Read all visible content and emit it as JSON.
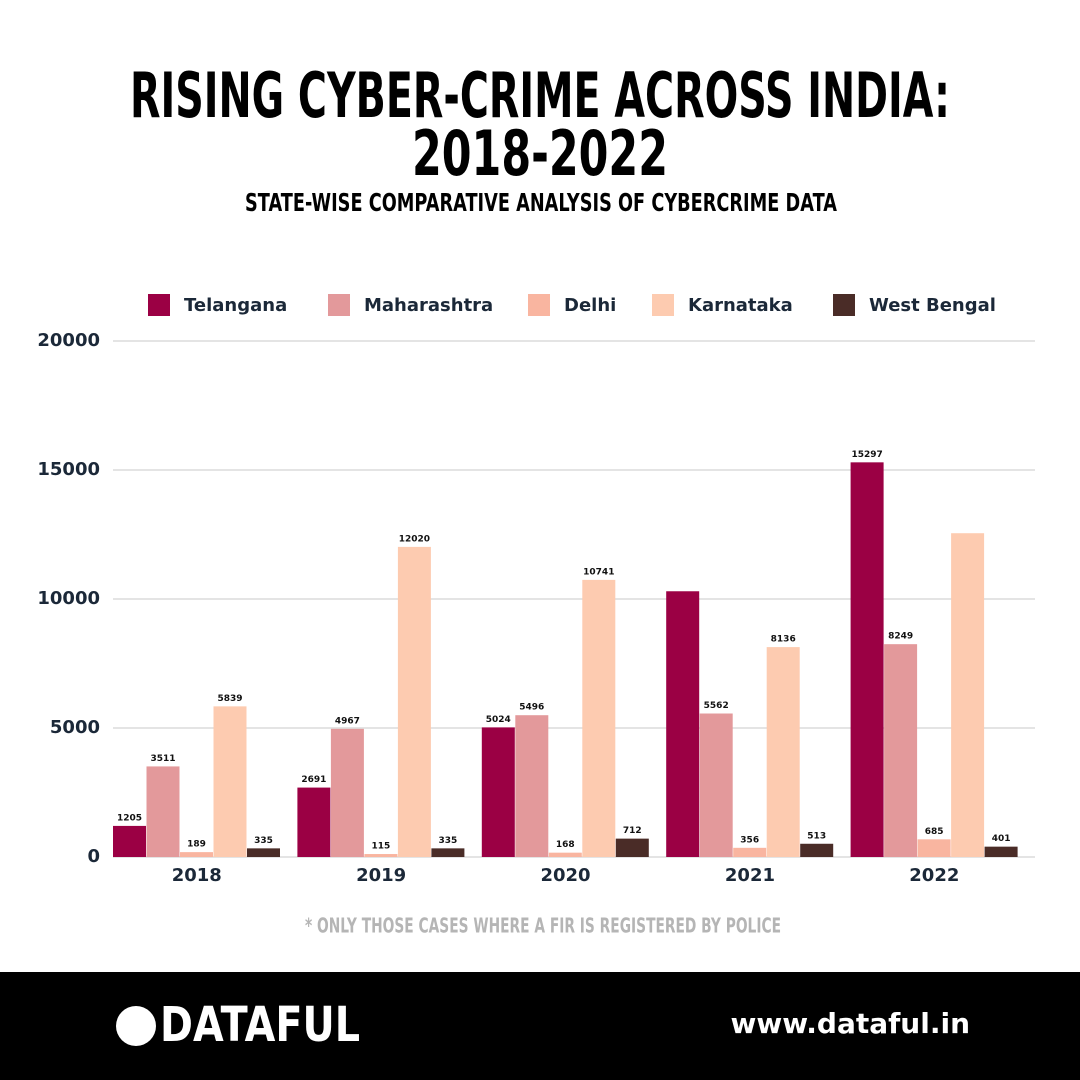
{
  "chart_data": {
    "type": "bar",
    "title": [
      "RISING CYBER-CRIME ACROSS INDIA:",
      "2018-2022"
    ],
    "subtitle": "STATE-WISE COMPARATIVE ANALYSIS OF CYBERCRIME DATA",
    "footnote": "* ONLY THOSE CASES WHERE A FIR IS REGISTERED BY POLICE",
    "categories": [
      "2018",
      "2019",
      "2020",
      "2021",
      "2022"
    ],
    "series": [
      {
        "name": "Telangana",
        "color": "#9b0044",
        "values": [
          1205,
          2691,
          5024,
          10300,
          15297
        ],
        "value_labels": [
          "1205",
          "2691",
          "5024",
          null,
          "15297"
        ]
      },
      {
        "name": "Maharashtra",
        "color": "#e3999b",
        "values": [
          3511,
          4967,
          5496,
          5562,
          8249
        ]
      },
      {
        "name": "Delhi",
        "color": "#f9b5a0",
        "values": [
          189,
          115,
          168,
          356,
          685
        ]
      },
      {
        "name": "Karnataka",
        "color": "#fdcbb0",
        "values": [
          5839,
          12020,
          10741,
          8136,
          12550
        ],
        "value_labels": [
          "5839",
          "12020",
          "10741",
          "8136",
          null
        ]
      },
      {
        "name": "West Bengal",
        "color": "#4a2c27",
        "values": [
          335,
          335,
          712,
          513,
          401
        ]
      }
    ],
    "ylim": [
      0,
      20000
    ],
    "yticks": [
      0,
      5000,
      10000,
      15000,
      20000
    ],
    "grid": true,
    "legend": "top"
  },
  "footer": {
    "brand": "DATAFUL",
    "url": "www.dataful.in"
  }
}
